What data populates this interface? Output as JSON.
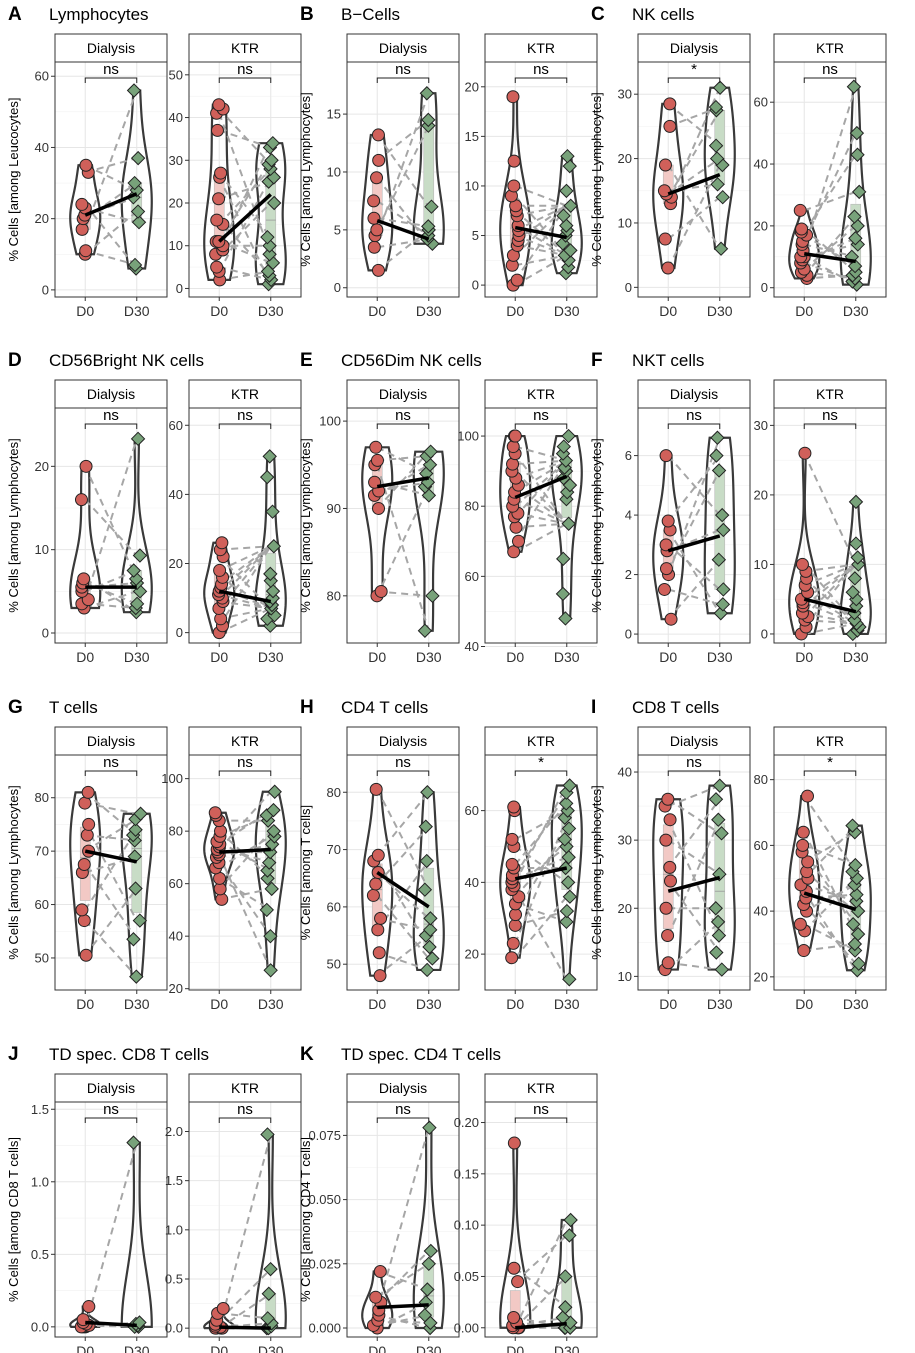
{
  "figure": {
    "x_categories": [
      "D0",
      "D30"
    ],
    "strip_labels": [
      "Dialysis",
      "KTR"
    ],
    "colors": {
      "d0_point": "#d0605a",
      "d30_point": "#78a27a",
      "d0_violin_fill": "#f2c9c5",
      "d30_violin_fill": "#c8dcc6",
      "violin_stroke": "#3a3a3a",
      "pair_line": "#a6a6a6",
      "mean_line": "#000000",
      "grid": "#e6e6e6",
      "strip_fill": "#ffffff",
      "panel_border": "#333333"
    }
  },
  "chart_data": [
    {
      "type": "violin-paired",
      "letter": "A",
      "title": "Lymphocytes",
      "ylabel": "% Cells [among Leucocytes]",
      "facets": [
        {
          "strip": "Dialysis",
          "ylim": [
            -2,
            64
          ],
          "yticks": [
            0,
            20,
            40,
            60
          ],
          "sig": "ns",
          "d0": [
            10,
            11,
            17,
            20,
            21,
            23,
            24,
            33,
            35
          ],
          "d30": [
            6,
            7,
            19,
            22,
            26,
            28,
            30,
            37,
            56
          ],
          "mean": [
            21,
            27
          ]
        },
        {
          "strip": "KTR",
          "ylim": [
            -2,
            53
          ],
          "yticks": [
            0,
            10,
            20,
            30,
            40,
            50
          ],
          "sig": "ns",
          "d0": [
            2,
            4,
            5,
            8,
            9,
            10,
            11,
            11,
            15,
            16,
            21,
            26,
            27,
            37,
            41,
            42,
            43
          ],
          "d30": [
            1,
            2,
            3,
            4,
            6,
            8,
            10,
            12,
            20,
            25,
            26,
            28,
            29,
            30,
            33,
            34
          ],
          "mean": [
            11,
            22
          ]
        }
      ]
    },
    {
      "type": "violin-paired",
      "letter": "B",
      "title": "B−Cells",
      "ylabel": "% Cells [among Lymphocytes]",
      "facets": [
        {
          "strip": "Dialysis",
          "ylim": [
            -0.8,
            19.5
          ],
          "yticks": [
            0,
            5,
            10,
            15
          ],
          "sig": "ns",
          "d0": [
            1.5,
            3.5,
            4.5,
            5,
            6,
            7.5,
            9.5,
            11,
            13.2
          ],
          "d30": [
            3.8,
            4.2,
            4.5,
            5,
            5.3,
            7,
            14,
            14.5,
            16.8
          ],
          "mean": [
            5.8,
            4.2
          ]
        },
        {
          "strip": "KTR",
          "ylim": [
            -1.2,
            22.5
          ],
          "yticks": [
            0,
            5,
            10,
            15,
            20
          ],
          "sig": "ns",
          "d0": [
            0,
            0.5,
            2,
            3,
            4,
            4.5,
            5,
            5.5,
            6,
            7,
            7.5,
            8,
            9,
            10,
            12.5,
            19
          ],
          "d30": [
            1.2,
            1.8,
            2.5,
            3,
            3.5,
            4.2,
            5,
            5.5,
            6,
            7,
            8,
            9.5,
            12,
            13
          ],
          "mean": [
            5.8,
            4.8
          ]
        }
      ]
    },
    {
      "type": "violin-paired",
      "letter": "C",
      "title": "NK cells",
      "ylabel": "% Cells [among Lymphocytes]",
      "facets": [
        {
          "strip": "Dialysis",
          "ylim": [
            -1.5,
            35
          ],
          "yticks": [
            0,
            10,
            20,
            30
          ],
          "sig": "*",
          "d0": [
            3,
            7.5,
            13,
            14,
            14.5,
            15,
            19,
            25,
            28.5
          ],
          "d30": [
            6,
            14,
            16,
            19,
            20,
            22,
            27.5,
            28,
            31
          ],
          "mean": [
            14.5,
            17.5
          ]
        },
        {
          "strip": "KTR",
          "ylim": [
            -3,
            73
          ],
          "yticks": [
            0,
            20,
            40,
            60
          ],
          "sig": "ns",
          "d0": [
            3,
            4,
            5,
            6,
            8,
            9,
            10,
            10,
            12,
            14,
            15,
            17,
            18,
            19,
            25
          ],
          "d30": [
            1,
            2,
            3,
            4,
            5,
            7,
            10,
            14,
            16,
            20,
            23,
            31,
            43,
            50,
            65
          ],
          "mean": [
            11,
            8.5
          ]
        }
      ]
    },
    {
      "type": "violin-paired",
      "letter": "D",
      "title": "CD56Bright NK cells",
      "ylabel": "% Cells [among Lymphocytes]",
      "facets": [
        {
          "strip": "Dialysis",
          "ylim": [
            -1.2,
            27
          ],
          "yticks": [
            0,
            10,
            20
          ],
          "sig": "ns",
          "d0": [
            3,
            3.5,
            4,
            5,
            5.5,
            6,
            6.5,
            16,
            20
          ],
          "d30": [
            2.5,
            3,
            3.5,
            5,
            6,
            6.5,
            7.5,
            9.3,
            23.3
          ],
          "mean": [
            5.5,
            5.5
          ]
        },
        {
          "strip": "KTR",
          "ylim": [
            -3,
            65
          ],
          "yticks": [
            0,
            20,
            40,
            60
          ],
          "sig": "ns",
          "d0": [
            0,
            2,
            4,
            7,
            9,
            10,
            11,
            12,
            13,
            14,
            16,
            18,
            22,
            24,
            26
          ],
          "d30": [
            2,
            4,
            5,
            7,
            8,
            9,
            10,
            12,
            15,
            17,
            25,
            35,
            45,
            51
          ],
          "mean": [
            12,
            9
          ]
        }
      ]
    },
    {
      "type": "violin-paired",
      "letter": "E",
      "title": "CD56Dim NK cells",
      "ylabel": "% Cells [among Lymphocytes]",
      "facets": [
        {
          "strip": "Dialysis",
          "ylim": [
            74.6,
            101.5
          ],
          "yticks": [
            80,
            90,
            100
          ],
          "sig": "ns",
          "d0": [
            80,
            80.5,
            90,
            91.5,
            92,
            93,
            95,
            95.5,
            97
          ],
          "d30": [
            76,
            80,
            91.5,
            92.5,
            93,
            94,
            95,
            96,
            96.5
          ],
          "mean": [
            92.5,
            93.5
          ]
        },
        {
          "strip": "KTR",
          "ylim": [
            41,
            108
          ],
          "yticks": [
            40,
            60,
            80,
            100
          ],
          "sig": "ns",
          "d0": [
            67,
            70,
            74,
            77,
            78,
            80,
            82,
            84,
            86,
            88,
            90,
            92,
            95,
            97,
            100,
            100
          ],
          "d30": [
            48,
            55,
            65,
            75,
            82,
            84,
            86,
            88,
            90,
            91,
            93,
            95,
            97,
            100
          ],
          "mean": [
            82.5,
            88.5
          ]
        }
      ]
    },
    {
      "type": "violin-paired",
      "letter": "F",
      "title": "NKT cells",
      "ylabel": "% Cells [among Lymphocytes]",
      "facets": [
        {
          "strip": "Dialysis",
          "ylim": [
            -0.3,
            7.6
          ],
          "yticks": [
            0,
            2,
            4,
            6
          ],
          "sig": "ns",
          "d0": [
            0.5,
            1.5,
            2,
            2.2,
            2.8,
            3,
            3.5,
            3.8,
            6
          ],
          "d30": [
            0.7,
            1,
            1.5,
            2.5,
            3.5,
            4,
            5.5,
            6,
            6.6
          ],
          "mean": [
            2.8,
            3.3
          ]
        },
        {
          "strip": "KTR",
          "ylim": [
            -1.3,
            32.5
          ],
          "yticks": [
            0,
            10,
            20,
            30
          ],
          "sig": "ns",
          "d0": [
            0,
            1,
            2,
            2.5,
            3,
            4,
            4.5,
            5,
            6,
            7,
            8,
            9,
            10,
            26
          ],
          "d30": [
            0,
            0.5,
            1,
            1.5,
            2,
            3,
            4,
            5,
            6,
            8,
            10,
            11,
            13,
            19
          ],
          "mean": [
            5,
            3.2
          ]
        }
      ]
    },
    {
      "type": "violin-paired",
      "letter": "G",
      "title": "T cells",
      "ylabel": "% Cells [among Lymphocytes]",
      "facets": [
        {
          "strip": "Dialysis",
          "ylim": [
            44,
            88
          ],
          "yticks": [
            50,
            60,
            70,
            80
          ],
          "sig": "ns",
          "d0": [
            50.5,
            57,
            59,
            66,
            67.5,
            70,
            73,
            75,
            79,
            81
          ],
          "d30": [
            46.5,
            53.5,
            57,
            63,
            69,
            72,
            73,
            74,
            76,
            77
          ],
          "mean": [
            70,
            68
          ]
        },
        {
          "strip": "KTR",
          "ylim": [
            19.5,
            109
          ],
          "yticks": [
            20,
            40,
            60,
            80,
            100
          ],
          "sig": "ns",
          "d0": [
            54,
            58,
            62,
            66,
            68,
            70,
            71,
            72,
            73,
            74,
            75,
            76,
            78,
            80,
            84,
            86,
            87
          ],
          "d30": [
            27,
            40,
            50,
            58,
            62,
            65,
            68,
            72,
            75,
            78,
            80,
            84,
            86,
            88,
            95
          ],
          "mean": [
            72,
            73
          ]
        }
      ]
    },
    {
      "type": "violin-paired",
      "letter": "H",
      "title": "CD4 T cells",
      "ylabel": "% Cells [among T cells]",
      "facets": [
        {
          "strip": "Dialysis",
          "ylim": [
            45.5,
            86.5
          ],
          "yticks": [
            50,
            60,
            70,
            80
          ],
          "sig": "ns",
          "d0": [
            48,
            52,
            56,
            58,
            62,
            64,
            66,
            68,
            69,
            80.5
          ],
          "d30": [
            49,
            51,
            53,
            55,
            56,
            58,
            63,
            68,
            74,
            80
          ],
          "mean": [
            66,
            60
          ]
        },
        {
          "strip": "KTR",
          "ylim": [
            10,
            75.5
          ],
          "yticks": [
            20,
            40,
            60
          ],
          "sig": "*",
          "d0": [
            19,
            23,
            28,
            31,
            34,
            36,
            38,
            39,
            40,
            41,
            42,
            44,
            45,
            50,
            52,
            60,
            61
          ],
          "d30": [
            13,
            29,
            32,
            36,
            40,
            44,
            47,
            50,
            52,
            55,
            58,
            60,
            62,
            65,
            67
          ],
          "mean": [
            41,
            44
          ]
        }
      ]
    },
    {
      "type": "violin-paired",
      "letter": "I",
      "title": "CD8 T cells",
      "ylabel": "% Cells [among Lymphocytes]",
      "facets": [
        {
          "strip": "Dialysis",
          "ylim": [
            8,
            42.5
          ],
          "yticks": [
            10,
            20,
            30,
            40
          ],
          "sig": "ns",
          "d0": [
            11,
            12,
            16,
            20,
            24,
            26,
            30,
            33,
            35,
            36
          ],
          "d30": [
            11,
            13.5,
            16,
            18,
            20,
            25,
            31,
            33,
            36,
            38
          ],
          "mean": [
            22.5,
            24.5
          ]
        },
        {
          "strip": "KTR",
          "ylim": [
            16,
            87.5
          ],
          "yticks": [
            20,
            40,
            60,
            80
          ],
          "sig": "*",
          "d0": [
            28,
            34,
            36,
            40,
            42,
            44,
            46,
            48,
            50,
            52,
            55,
            58,
            60,
            64,
            75
          ],
          "d30": [
            22,
            24,
            28,
            30,
            33,
            36,
            40,
            43,
            45,
            48,
            50,
            52,
            54,
            64,
            66
          ],
          "mean": [
            45.5,
            40.5
          ]
        }
      ]
    },
    {
      "type": "violin-paired",
      "letter": "J",
      "title": "TD spec. CD8 T cells",
      "ylabel": "% Cells [among CD8 T cells]",
      "facets": [
        {
          "strip": "Dialysis",
          "ylim": [
            -0.07,
            1.55
          ],
          "yticks": [
            0.0,
            0.5,
            1.0,
            1.5
          ],
          "sig": "ns",
          "d0": [
            0,
            0,
            0,
            0.01,
            0.02,
            0.03,
            0.05,
            0.14
          ],
          "d30": [
            0,
            0,
            0.01,
            0.02,
            0.03,
            1.27
          ],
          "mean": [
            0.03,
            0.01
          ]
        },
        {
          "strip": "KTR",
          "ylim": [
            -0.09,
            2.3
          ],
          "yticks": [
            0.0,
            0.5,
            1.0,
            1.5,
            2.0
          ],
          "sig": "ns",
          "d0": [
            0,
            0,
            0,
            0,
            0.01,
            0.02,
            0.04,
            0.08,
            0.15,
            0.2
          ],
          "d30": [
            0,
            0,
            0,
            0.02,
            0.05,
            0.1,
            0.35,
            0.6,
            1.97
          ],
          "mean": [
            0.01,
            0.0
          ]
        }
      ]
    },
    {
      "type": "violin-paired",
      "letter": "K",
      "title": "TD spec. CD4 T cells",
      "ylabel": "% Cells [among CD4 T cells]",
      "facets": [
        {
          "strip": "Dialysis",
          "ylim": [
            -0.0035,
            0.088
          ],
          "yticks": [
            "0.000",
            "0.025",
            "0.050",
            "0.075"
          ],
          "sig": "ns",
          "d0": [
            0.0,
            0.001,
            0.003,
            0.005,
            0.007,
            0.01,
            0.012,
            0.022
          ],
          "d30": [
            0.0,
            0.002,
            0.005,
            0.01,
            0.015,
            0.025,
            0.03,
            0.078
          ],
          "mean": [
            0.008,
            0.009
          ]
        },
        {
          "strip": "KTR",
          "ylim": [
            -0.009,
            0.22
          ],
          "yticks": [
            "0.00",
            "0.05",
            "0.10",
            "0.15",
            "0.20"
          ],
          "sig": "ns",
          "d0": [
            0,
            0,
            0,
            0,
            0.002,
            0.005,
            0.01,
            0.045,
            0.058,
            0.18
          ],
          "d30": [
            0,
            0,
            0,
            0.005,
            0.01,
            0.02,
            0.05,
            0.09,
            0.105
          ],
          "mean": [
            0.0,
            0.004
          ]
        }
      ]
    }
  ]
}
